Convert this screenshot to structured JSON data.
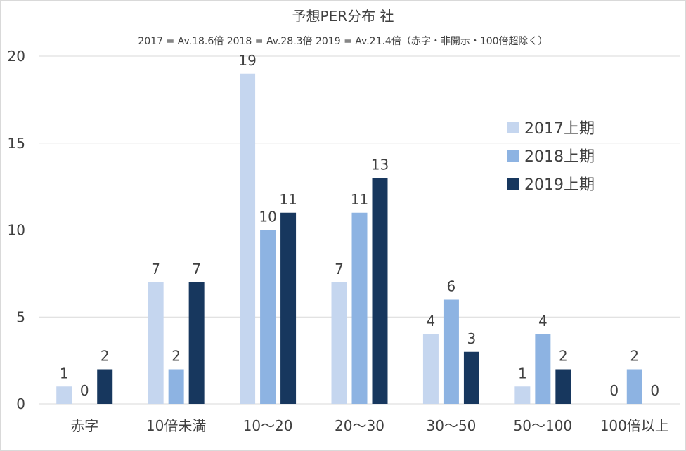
{
  "chart_data": {
    "type": "bar",
    "title": "予想PER分布 社",
    "subtitle": "2017 = Av.18.6倍 2018 = Av.28.3倍 2019 = Av.21.4倍（赤字・非開示・100倍超除く）",
    "categories": [
      "赤字",
      "10倍未満",
      "10～20",
      "20～30",
      "30～50",
      "50～100",
      "100倍以上"
    ],
    "series": [
      {
        "name": "2017上期",
        "color": "#c5d6ef",
        "values": [
          1,
          7,
          19,
          7,
          4,
          1,
          0
        ]
      },
      {
        "name": "2018上期",
        "color": "#8db3e2",
        "values": [
          0,
          2,
          10,
          11,
          6,
          4,
          2
        ]
      },
      {
        "name": "2019上期",
        "color": "#17375e",
        "values": [
          2,
          7,
          11,
          13,
          3,
          2,
          0
        ]
      }
    ],
    "ylim": [
      0,
      20
    ],
    "yticks": [
      0,
      5,
      10,
      15,
      20
    ],
    "grid": true,
    "legend_position": "right"
  }
}
